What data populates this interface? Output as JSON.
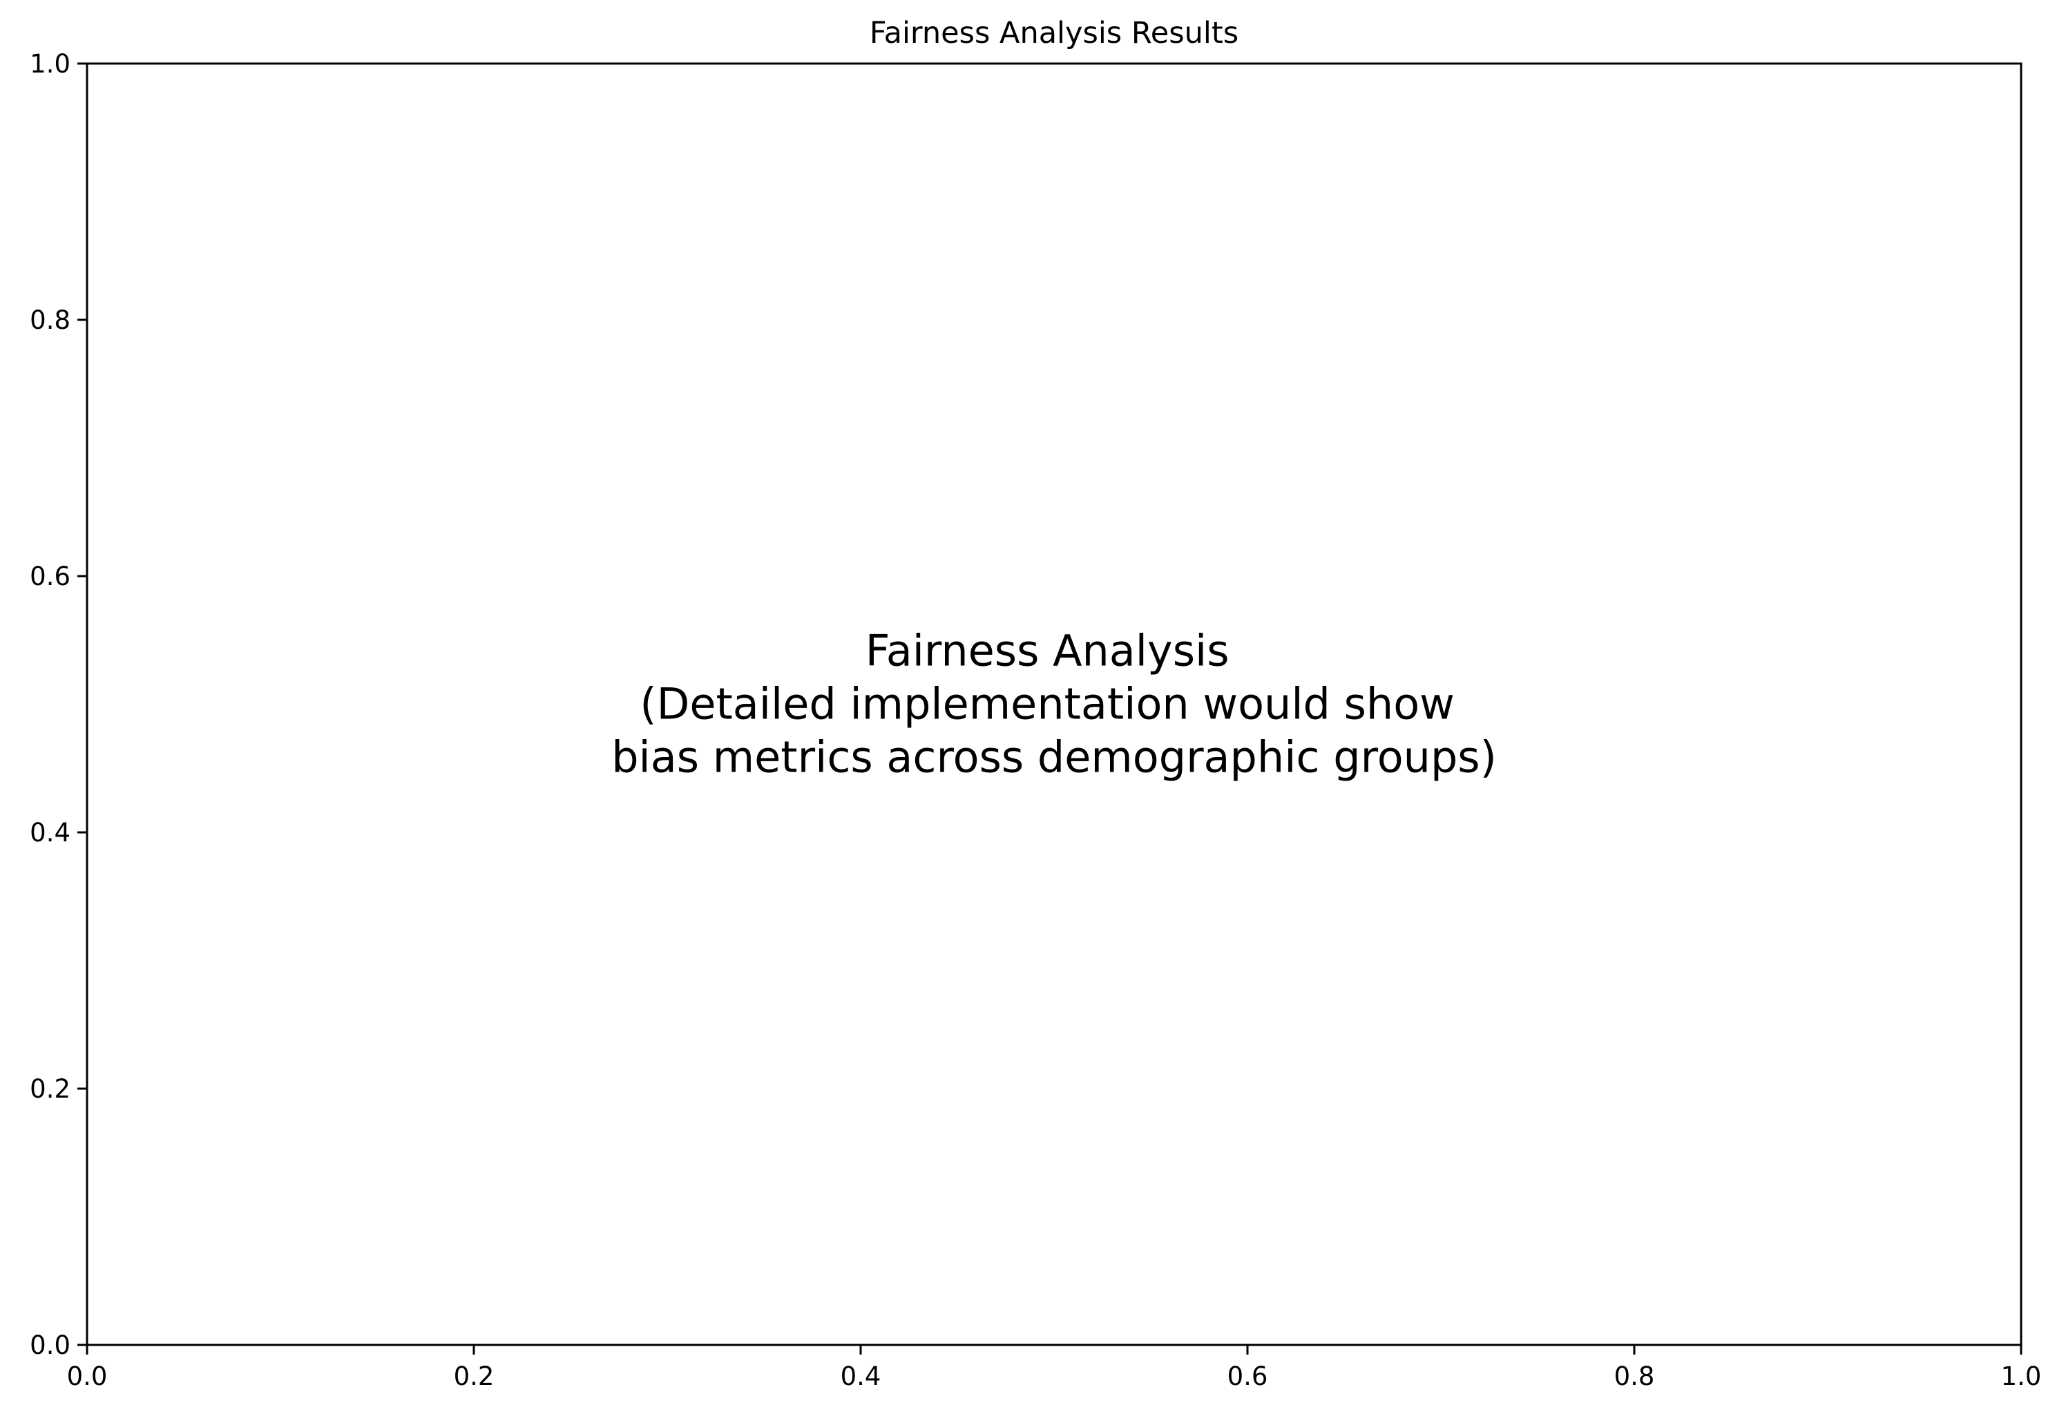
{
  "chart_data": {
    "type": "scatter",
    "title": "Fairness Analysis Results",
    "xlabel": "",
    "ylabel": "",
    "xlim": [
      0.0,
      1.0
    ],
    "ylim": [
      0.0,
      1.0
    ],
    "x_ticks": [
      "0.0",
      "0.2",
      "0.4",
      "0.6",
      "0.8",
      "1.0"
    ],
    "y_ticks": [
      "0.0",
      "0.2",
      "0.4",
      "0.6",
      "0.8",
      "1.0"
    ],
    "grid": false,
    "series": [],
    "annotation": {
      "lines": [
        "Fairness Analysis",
        "(Detailed implementation would show",
        "bias metrics across demographic groups)"
      ],
      "x": 0.5,
      "y": 0.5
    }
  }
}
